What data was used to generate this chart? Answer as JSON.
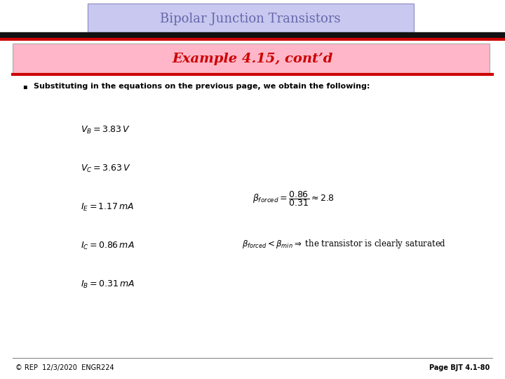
{
  "title": "Bipolar Junction Transistors",
  "title_box_color": "#c8c8f0",
  "title_text_color": "#6666aa",
  "subtitle": "Example 4.15, cont’d",
  "subtitle_box_color": "#ffb6c8",
  "subtitle_text_color": "#cc0000",
  "bullet_text": "Substituting in the equations on the previous page, we obtain the following:",
  "bg_color": "#ffffff",
  "footer_left": "© REP  12/3/2020  ENGR224",
  "footer_right": "Page BJT 4.1-80",
  "bar_black": "#111111",
  "bar_red": "#cc0000",
  "text_color": "#000000",
  "title_fontsize": 13,
  "subtitle_fontsize": 14,
  "bullet_fontsize": 8,
  "eq_fontsize": 9,
  "footer_fontsize": 7
}
